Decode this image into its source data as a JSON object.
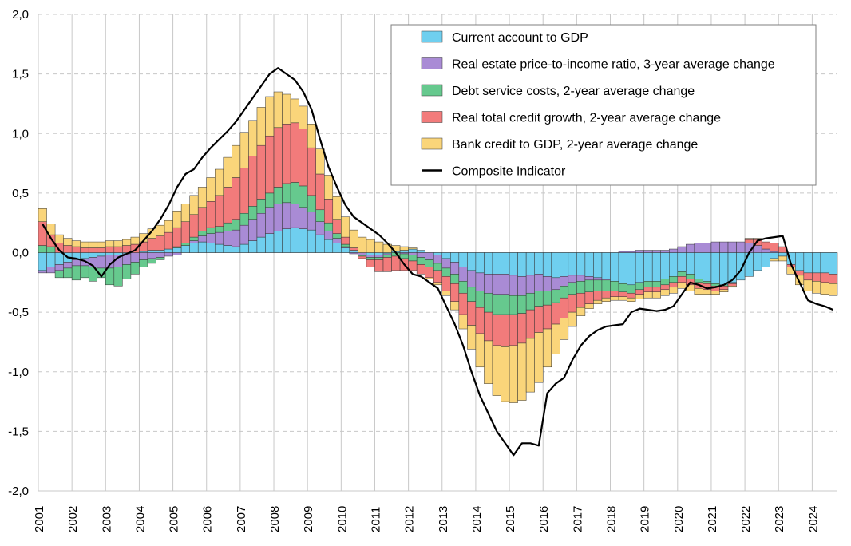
{
  "chart_data": {
    "type": "stacked-bar-line",
    "title": "",
    "xlabel": "",
    "ylabel": "",
    "ylim": [
      -2.0,
      2.0
    ],
    "y_ticks": [
      "2,0",
      "1,5",
      "1,0",
      "0,5",
      "0,0",
      "-0,5",
      "-1,0",
      "-1,5",
      "-2,0"
    ],
    "y_tick_values": [
      2.0,
      1.5,
      1.0,
      0.5,
      0.0,
      -0.5,
      -1.0,
      -1.5,
      -2.0
    ],
    "x_ticks": [
      "2001",
      "2002",
      "2003",
      "2004",
      "2005",
      "2006",
      "2007",
      "2008",
      "2009",
      "2010",
      "2011",
      "2012",
      "2013",
      "2014",
      "2015",
      "2016",
      "2017",
      "2018",
      "2019",
      "2020",
      "2021",
      "2022",
      "2023",
      "2024"
    ],
    "grid": true,
    "legend_position": "top-right",
    "periods": [
      "2001Q1",
      "2001Q2",
      "2001Q3",
      "2001Q4",
      "2002Q1",
      "2002Q2",
      "2002Q3",
      "2002Q4",
      "2003Q1",
      "2003Q2",
      "2003Q3",
      "2003Q4",
      "2004Q1",
      "2004Q2",
      "2004Q3",
      "2004Q4",
      "2005Q1",
      "2005Q2",
      "2005Q3",
      "2005Q4",
      "2006Q1",
      "2006Q2",
      "2006Q3",
      "2006Q4",
      "2007Q1",
      "2007Q2",
      "2007Q3",
      "2007Q4",
      "2008Q1",
      "2008Q2",
      "2008Q3",
      "2008Q4",
      "2009Q1",
      "2009Q2",
      "2009Q3",
      "2009Q4",
      "2010Q1",
      "2010Q2",
      "2010Q3",
      "2010Q4",
      "2011Q1",
      "2011Q2",
      "2011Q3",
      "2011Q4",
      "2012Q1",
      "2012Q2",
      "2012Q3",
      "2012Q4",
      "2013Q1",
      "2013Q2",
      "2013Q3",
      "2013Q4",
      "2014Q1",
      "2014Q2",
      "2014Q3",
      "2014Q4",
      "2015Q1",
      "2015Q2",
      "2015Q3",
      "2015Q4",
      "2016Q1",
      "2016Q2",
      "2016Q3",
      "2016Q4",
      "2017Q1",
      "2017Q2",
      "2017Q3",
      "2017Q4",
      "2018Q1",
      "2018Q2",
      "2018Q3",
      "2018Q4",
      "2019Q1",
      "2019Q2",
      "2019Q3",
      "2019Q4",
      "2020Q1",
      "2020Q2",
      "2020Q3",
      "2020Q4",
      "2021Q1",
      "2021Q2",
      "2021Q3",
      "2021Q4",
      "2022Q1",
      "2022Q2",
      "2022Q3",
      "2022Q4",
      "2023Q1",
      "2023Q2",
      "2023Q3",
      "2023Q4",
      "2024Q1",
      "2024Q2",
      "2024Q3"
    ],
    "series": [
      {
        "name": "Current account to GDP",
        "color": "#6FCFEF",
        "values": [
          -0.15,
          -0.12,
          -0.1,
          -0.08,
          -0.06,
          -0.05,
          -0.04,
          -0.03,
          -0.02,
          -0.02,
          -0.01,
          0.0,
          0.01,
          0.02,
          0.02,
          0.03,
          0.04,
          0.06,
          0.08,
          0.09,
          0.08,
          0.07,
          0.06,
          0.05,
          0.07,
          0.1,
          0.13,
          0.16,
          0.18,
          0.2,
          0.21,
          0.2,
          0.19,
          0.15,
          0.11,
          0.08,
          0.04,
          0.02,
          0.0,
          -0.02,
          -0.02,
          -0.01,
          0.01,
          0.02,
          0.03,
          0.02,
          0.0,
          -0.02,
          -0.05,
          -0.08,
          -0.12,
          -0.15,
          -0.17,
          -0.18,
          -0.18,
          -0.18,
          -0.19,
          -0.2,
          -0.19,
          -0.18,
          -0.2,
          -0.21,
          -0.2,
          -0.19,
          -0.19,
          -0.2,
          -0.21,
          -0.22,
          -0.24,
          -0.26,
          -0.27,
          -0.25,
          -0.24,
          -0.24,
          -0.22,
          -0.2,
          -0.16,
          -0.18,
          -0.22,
          -0.24,
          -0.26,
          -0.27,
          -0.25,
          -0.23,
          -0.2,
          -0.15,
          -0.12,
          -0.05,
          -0.03,
          -0.1,
          -0.15,
          -0.17,
          -0.17,
          -0.17,
          -0.18
        ]
      },
      {
        "name": "Real estate price-to-income ratio, 3-year average change",
        "color": "#A98BD5",
        "values": [
          -0.02,
          -0.05,
          -0.05,
          -0.05,
          -0.05,
          -0.06,
          -0.08,
          -0.1,
          -0.11,
          -0.1,
          -0.09,
          -0.08,
          -0.06,
          -0.05,
          -0.04,
          -0.03,
          -0.02,
          0.0,
          0.02,
          0.05,
          0.08,
          0.1,
          0.12,
          0.14,
          0.16,
          0.18,
          0.2,
          0.22,
          0.23,
          0.22,
          0.2,
          0.18,
          0.15,
          0.11,
          0.07,
          0.04,
          0.01,
          -0.01,
          -0.02,
          -0.02,
          -0.02,
          -0.01,
          0.0,
          -0.01,
          -0.02,
          -0.04,
          -0.06,
          -0.07,
          -0.08,
          -0.1,
          -0.12,
          -0.14,
          -0.15,
          -0.16,
          -0.17,
          -0.17,
          -0.17,
          -0.16,
          -0.15,
          -0.14,
          -0.12,
          -0.1,
          -0.08,
          -0.06,
          -0.05,
          -0.03,
          -0.02,
          -0.01,
          0.0,
          0.01,
          0.01,
          0.02,
          0.02,
          0.02,
          0.02,
          0.03,
          0.05,
          0.07,
          0.08,
          0.08,
          0.09,
          0.09,
          0.09,
          0.09,
          0.08,
          0.06,
          0.03,
          0.01,
          0.0,
          0.0,
          0.0,
          0.0,
          0.0,
          0.0,
          0.0
        ]
      },
      {
        "name": "Debt service costs, 2-year average change",
        "color": "#66C98E",
        "values": [
          0.06,
          0.05,
          -0.06,
          -0.08,
          -0.12,
          -0.1,
          -0.12,
          -0.08,
          -0.14,
          -0.16,
          -0.12,
          -0.1,
          -0.06,
          -0.04,
          -0.02,
          0.0,
          0.01,
          0.02,
          0.03,
          0.04,
          0.05,
          0.05,
          0.07,
          0.09,
          0.1,
          0.11,
          0.12,
          0.12,
          0.14,
          0.16,
          0.18,
          0.18,
          0.14,
          0.1,
          0.07,
          0.04,
          0.02,
          0.0,
          -0.01,
          -0.02,
          -0.02,
          -0.02,
          -0.03,
          -0.04,
          -0.05,
          -0.06,
          -0.06,
          -0.06,
          -0.07,
          -0.08,
          -0.1,
          -0.12,
          -0.14,
          -0.16,
          -0.17,
          -0.17,
          -0.16,
          -0.15,
          -0.14,
          -0.13,
          -0.12,
          -0.11,
          -0.1,
          -0.1,
          -0.1,
          -0.1,
          -0.09,
          -0.09,
          -0.08,
          -0.07,
          -0.07,
          -0.06,
          -0.05,
          -0.05,
          -0.05,
          -0.05,
          -0.04,
          -0.04,
          -0.03,
          -0.02,
          -0.02,
          -0.01,
          -0.01,
          0.0,
          0.0,
          0.0,
          0.0,
          0.0,
          0.0,
          0.0,
          0.0,
          0.0,
          0.0,
          0.0,
          0.0
        ]
      },
      {
        "name": "Real total credit growth, 2-year average change",
        "color": "#F27B7B",
        "values": [
          0.2,
          0.1,
          0.08,
          0.06,
          0.05,
          0.04,
          0.04,
          0.04,
          0.05,
          0.05,
          0.06,
          0.07,
          0.08,
          0.1,
          0.12,
          0.14,
          0.16,
          0.18,
          0.19,
          0.2,
          0.22,
          0.26,
          0.3,
          0.35,
          0.38,
          0.42,
          0.45,
          0.48,
          0.5,
          0.5,
          0.5,
          0.48,
          0.4,
          0.3,
          0.2,
          0.12,
          0.06,
          0.02,
          -0.02,
          -0.06,
          -0.1,
          -0.12,
          -0.12,
          -0.1,
          -0.08,
          -0.08,
          -0.09,
          -0.1,
          -0.12,
          -0.15,
          -0.18,
          -0.2,
          -0.22,
          -0.24,
          -0.26,
          -0.27,
          -0.26,
          -0.25,
          -0.24,
          -0.22,
          -0.2,
          -0.18,
          -0.17,
          -0.15,
          -0.12,
          -0.1,
          -0.08,
          -0.06,
          -0.05,
          -0.04,
          -0.04,
          -0.04,
          -0.04,
          -0.04,
          -0.04,
          -0.04,
          -0.05,
          -0.05,
          -0.05,
          -0.05,
          -0.04,
          -0.03,
          -0.02,
          0.0,
          0.03,
          0.05,
          0.06,
          0.07,
          0.05,
          -0.02,
          -0.04,
          -0.06,
          -0.07,
          -0.08,
          -0.08
        ]
      },
      {
        "name": "Bank credit to GDP, 2-year average change",
        "color": "#FAD57A",
        "values": [
          0.11,
          0.09,
          0.07,
          0.06,
          0.05,
          0.05,
          0.05,
          0.05,
          0.05,
          0.05,
          0.05,
          0.06,
          0.07,
          0.08,
          0.09,
          0.1,
          0.14,
          0.15,
          0.16,
          0.17,
          0.2,
          0.22,
          0.25,
          0.27,
          0.3,
          0.3,
          0.32,
          0.33,
          0.3,
          0.25,
          0.2,
          0.19,
          0.2,
          0.21,
          0.2,
          0.19,
          0.17,
          0.15,
          0.13,
          0.11,
          0.09,
          0.07,
          0.05,
          0.03,
          0.01,
          0.0,
          -0.01,
          -0.02,
          -0.04,
          -0.07,
          -0.12,
          -0.2,
          -0.28,
          -0.36,
          -0.42,
          -0.46,
          -0.48,
          -0.48,
          -0.45,
          -0.42,
          -0.32,
          -0.25,
          -0.18,
          -0.12,
          -0.07,
          -0.04,
          -0.03,
          -0.03,
          -0.03,
          -0.03,
          -0.03,
          -0.04,
          -0.05,
          -0.05,
          -0.05,
          -0.05,
          -0.05,
          -0.05,
          -0.05,
          -0.04,
          -0.03,
          -0.02,
          -0.01,
          0.0,
          0.01,
          0.01,
          0.0,
          -0.02,
          -0.04,
          -0.06,
          -0.08,
          -0.09,
          -0.1,
          -0.1,
          -0.1
        ]
      }
    ],
    "line": {
      "name": "Composite Indicator",
      "color": "#000000",
      "values": [
        0.24,
        0.12,
        0.02,
        -0.04,
        -0.05,
        -0.07,
        -0.11,
        -0.2,
        -0.1,
        -0.04,
        -0.01,
        0.02,
        0.1,
        0.18,
        0.28,
        0.4,
        0.55,
        0.66,
        0.7,
        0.8,
        0.88,
        0.95,
        1.02,
        1.1,
        1.2,
        1.3,
        1.4,
        1.5,
        1.55,
        1.5,
        1.45,
        1.35,
        1.2,
        0.95,
        0.72,
        0.55,
        0.4,
        0.3,
        0.25,
        0.2,
        0.15,
        0.08,
        0.0,
        -0.1,
        -0.18,
        -0.2,
        -0.25,
        -0.3,
        -0.45,
        -0.6,
        -0.78,
        -1.0,
        -1.2,
        -1.35,
        -1.5,
        -1.6,
        -1.7,
        -1.6,
        -1.6,
        -1.62,
        -1.18,
        -1.1,
        -1.05,
        -0.9,
        -0.78,
        -0.7,
        -0.65,
        -0.62,
        -0.61,
        -0.6,
        -0.5,
        -0.47,
        -0.48,
        -0.49,
        -0.48,
        -0.45,
        -0.35,
        -0.25,
        -0.27,
        -0.3,
        -0.29,
        -0.27,
        -0.23,
        -0.15,
        0.0,
        0.1,
        0.12,
        0.13,
        0.14,
        -0.1,
        -0.25,
        -0.4,
        -0.43,
        -0.45,
        -0.48
      ]
    }
  }
}
